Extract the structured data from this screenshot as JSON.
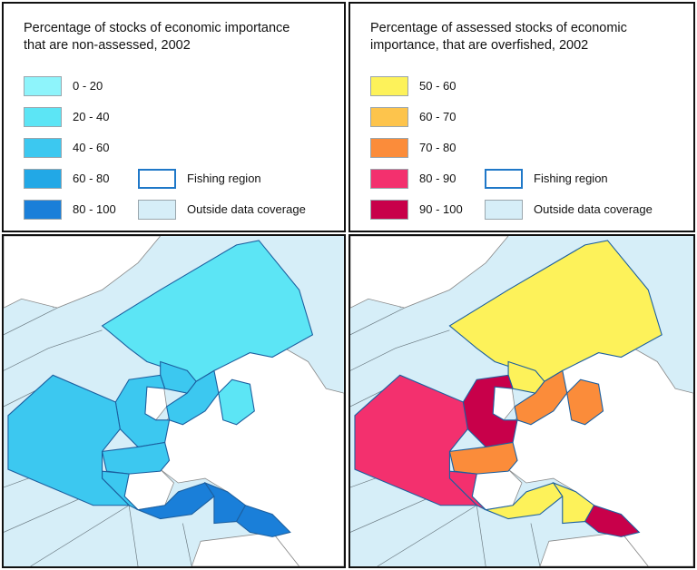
{
  "left_legend": {
    "title_line1": "Percentage of stocks of economic importance",
    "title_line2": "that are non-assessed, 2002",
    "classes": [
      {
        "label": "0 - 20",
        "color": "#8ef4fb"
      },
      {
        "label": "20 - 40",
        "color": "#5ce5f5"
      },
      {
        "label": "40 - 60",
        "color": "#3cc8f0"
      },
      {
        "label": "60 - 80",
        "color": "#22a8e6"
      },
      {
        "label": "80 - 100",
        "color": "#1a7fd9"
      }
    ],
    "fishing_region_label": "Fishing region",
    "outside_label": "Outside data coverage",
    "outside_color": "#d6eef8",
    "outline_color": "#1f78c8"
  },
  "right_legend": {
    "title_line1": "Percentage of assessed stocks of economic",
    "title_line2": "importance, that are overfished, 2002",
    "classes": [
      {
        "label": "50 - 60",
        "color": "#fdf25a"
      },
      {
        "label": "60 - 70",
        "color": "#fdc44c"
      },
      {
        "label": "70 - 80",
        "color": "#fb8c3a"
      },
      {
        "label": "80 - 90",
        "color": "#f3306e"
      },
      {
        "label": "90 - 100",
        "color": "#c8004a"
      }
    ],
    "fishing_region_label": "Fishing region",
    "outside_label": "Outside data coverage",
    "outside_color": "#d6eef8",
    "outline_color": "#1f78c8"
  },
  "maps": {
    "left": {
      "regions": {
        "northeast_arctic": 1,
        "faroes": 2,
        "north_sea": 2,
        "celtic": 2,
        "biscay": 2,
        "iberia": 2,
        "azores_west": 2,
        "baltic": 1,
        "mediterranean_west": 4,
        "mediterranean_central": 4,
        "mediterranean_east": 4
      }
    },
    "right": {
      "regions": {
        "northeast_arctic": 0,
        "faroes": 0,
        "north_sea": 2,
        "celtic": 4,
        "biscay": 2,
        "iberia": 3,
        "azores_west": 3,
        "baltic": 2,
        "mediterranean_west": 0,
        "mediterranean_central": 0,
        "mediterranean_east": 4
      }
    }
  }
}
